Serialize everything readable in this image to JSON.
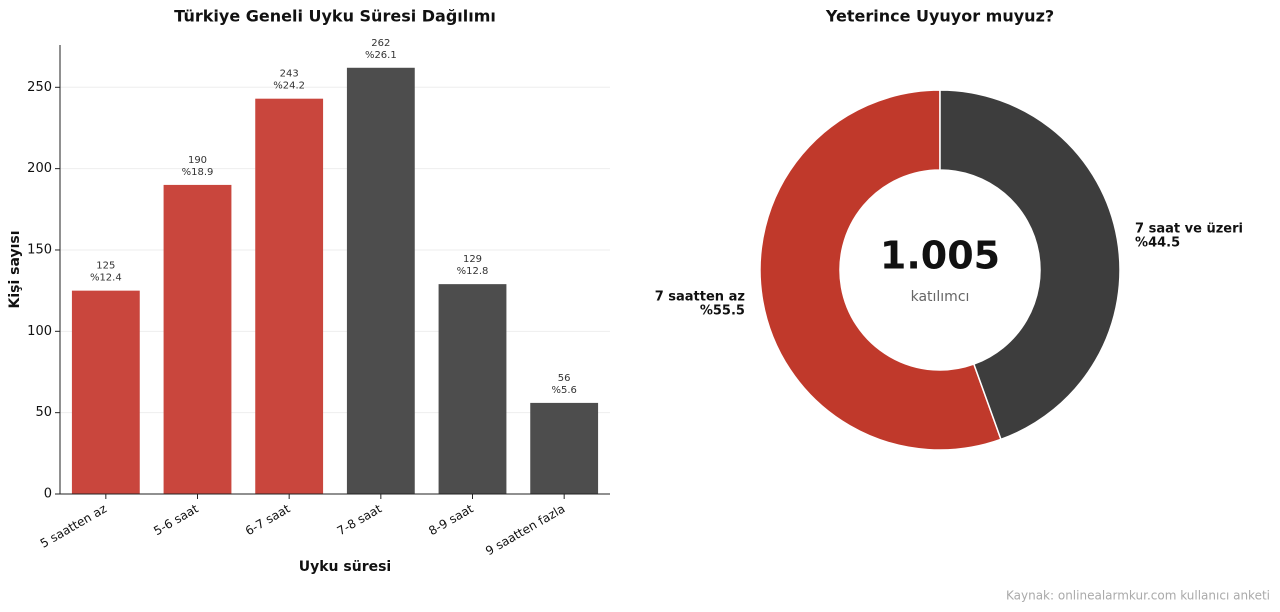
{
  "chart_data": [
    {
      "type": "bar",
      "title": "Türkiye Geneli Uyku Süresi Dağılımı",
      "xlabel": "Uyku süresi",
      "ylabel": "Kişi sayısı",
      "categories": [
        "5 saatten az",
        "5-6 saat",
        "6-7 saat",
        "7-8 saat",
        "8-9 saat",
        "9 saatten fazla"
      ],
      "values": [
        125,
        190,
        243,
        262,
        129,
        56
      ],
      "percent_labels": [
        "%12.4",
        "%18.9",
        "%24.2",
        "%26.1",
        "%12.8",
        "%5.6"
      ],
      "colors": [
        "#c9463d",
        "#c9463d",
        "#c9463d",
        "#4d4d4d",
        "#4d4d4d",
        "#4d4d4d"
      ],
      "ylim": [
        0,
        276
      ],
      "yticks": [
        0,
        50,
        100,
        150,
        200,
        250
      ],
      "grid": true
    },
    {
      "type": "donut",
      "title": "Yeterince Uyuyor muyuz?",
      "categories": [
        "7 saatten az",
        "7 saat ve üzeri"
      ],
      "values": [
        55.5,
        44.5
      ],
      "value_labels": [
        "%55.5",
        "%44.5"
      ],
      "colors": [
        "#c0392b",
        "#3d3d3d"
      ],
      "center_label": "1.005",
      "center_sublabel": "katılımcı"
    }
  ],
  "source": "Kaynak: onlinealarmkur.com kullanıcı anketi"
}
